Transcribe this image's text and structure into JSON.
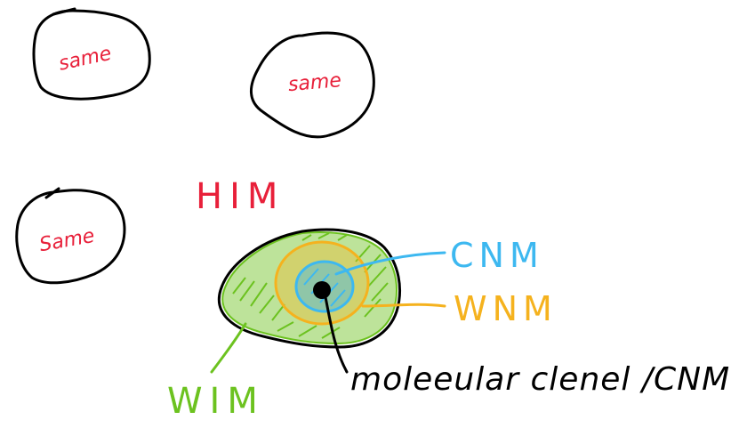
{
  "colors": {
    "outline": "#000000",
    "red": "#e8203a",
    "blue": "#3db8f0",
    "orange": "#f5b21e",
    "green": "#6cc21f",
    "black": "#000000"
  },
  "labels": {
    "blob_top_left": "same",
    "blob_top_middle": "same",
    "blob_left": "Same",
    "him": "HIM",
    "cnm": "CNM",
    "wnm": "WNM",
    "wim": "WIM",
    "molecular": "moleeular clenel /CNM"
  }
}
